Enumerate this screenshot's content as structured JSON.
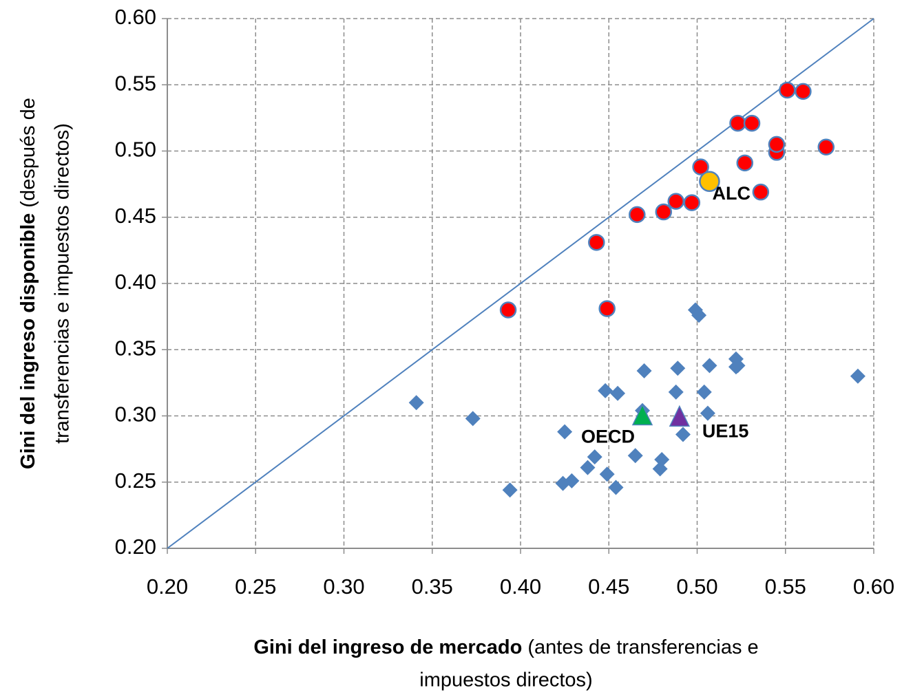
{
  "chart_data": {
    "type": "scatter",
    "xlabel": {
      "bold": "Gini del ingreso de mercado",
      "lines": [
        "(antes de transferencias e",
        "impuestos directos)"
      ]
    },
    "ylabel": {
      "bold": "Gini del ingreso disponible",
      "lines": [
        "(después de",
        "transferencias e  impuestos directos)"
      ]
    },
    "xlim": [
      0.2,
      0.6
    ],
    "ylim": [
      0.2,
      0.6
    ],
    "xticks": [
      {
        "value": 0.2,
        "label": "0.20"
      },
      {
        "value": 0.25,
        "label": "0.25"
      },
      {
        "value": 0.3,
        "label": "0.30"
      },
      {
        "value": 0.35,
        "label": "0.35"
      },
      {
        "value": 0.4,
        "label": "0.40"
      },
      {
        "value": 0.45,
        "label": "0.45"
      },
      {
        "value": 0.5,
        "label": "0.50"
      },
      {
        "value": 0.55,
        "label": "0.55"
      },
      {
        "value": 0.6,
        "label": "0.60"
      }
    ],
    "yticks": [
      {
        "value": 0.2,
        "label": "0.20"
      },
      {
        "value": 0.25,
        "label": "0.25"
      },
      {
        "value": 0.3,
        "label": "0.30"
      },
      {
        "value": 0.35,
        "label": "0.35"
      },
      {
        "value": 0.4,
        "label": "0.40"
      },
      {
        "value": 0.45,
        "label": "0.45"
      },
      {
        "value": 0.5,
        "label": "0.50"
      },
      {
        "value": 0.55,
        "label": "0.55"
      },
      {
        "value": 0.6,
        "label": "0.60"
      }
    ],
    "grid": true,
    "diagonal": {
      "x": [
        0.2,
        0.6
      ],
      "y": [
        0.2,
        0.6
      ],
      "color": "#4f81bd"
    },
    "series": [
      {
        "marker": "diamond",
        "color": "#4f81bd",
        "x": [
          0.341,
          0.373,
          0.394,
          0.424,
          0.429,
          0.425,
          0.438,
          0.442,
          0.449,
          0.448,
          0.455,
          0.454,
          0.465,
          0.47,
          0.469,
          0.48,
          0.479,
          0.488,
          0.489,
          0.492,
          0.499,
          0.501,
          0.504,
          0.506,
          0.507,
          0.522,
          0.523,
          0.522,
          0.591
        ],
        "y": [
          0.31,
          0.298,
          0.244,
          0.249,
          0.251,
          0.288,
          0.261,
          0.269,
          0.256,
          0.319,
          0.317,
          0.246,
          0.27,
          0.334,
          0.304,
          0.267,
          0.26,
          0.318,
          0.336,
          0.286,
          0.38,
          0.376,
          0.318,
          0.302,
          0.338,
          0.343,
          0.338,
          0.337,
          0.33
        ]
      },
      {
        "marker": "circle",
        "color": "#ff0000",
        "x": [
          0.393,
          0.443,
          0.449,
          0.466,
          0.481,
          0.488,
          0.497,
          0.502,
          0.523,
          0.531,
          0.527,
          0.536,
          0.545,
          0.545,
          0.551,
          0.56,
          0.573
        ],
        "y": [
          0.38,
          0.431,
          0.381,
          0.452,
          0.454,
          0.462,
          0.461,
          0.488,
          0.521,
          0.521,
          0.491,
          0.469,
          0.499,
          0.505,
          0.546,
          0.545,
          0.503
        ]
      },
      {
        "name": "ALC",
        "marker": "bigcircle",
        "color": "#ffc000",
        "x": [
          0.507
        ],
        "y": [
          0.477
        ]
      },
      {
        "name": "OECD",
        "marker": "triangle",
        "color": "#00b050",
        "x": [
          0.469
        ],
        "y": [
          0.3
        ]
      },
      {
        "name": "UE15",
        "marker": "triangle",
        "color": "#7030a0",
        "x": [
          0.49
        ],
        "y": [
          0.299
        ]
      }
    ]
  }
}
